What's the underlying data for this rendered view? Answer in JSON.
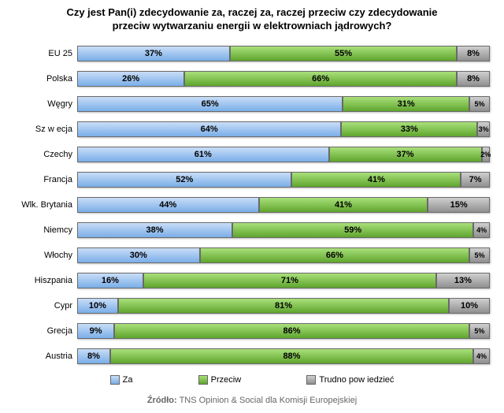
{
  "chart": {
    "type": "stacked-bar-horizontal",
    "title_line1": "Czy jest Pan(i) zdecydowanie za, raczej za, raczej przeciw czy zdecydowanie",
    "title_line2": "przeciw wytwarzaniu energii w elektrowniach jądrowych?",
    "title_fontsize": 13,
    "label_fontsize": 11,
    "value_fontsize": 11,
    "legend_fontsize": 11,
    "colors": {
      "za": "#9cc2f0",
      "przeciw": "#7bc043",
      "trudno": "#a8a8a8",
      "outline": "#6a6a6a",
      "text": "#000000",
      "source_text": "#666666"
    },
    "gradients": {
      "za": {
        "from": "#c9ddf7",
        "to": "#7aaee8"
      },
      "przeciw": {
        "from": "#a9e07a",
        "to": "#5fa52e"
      },
      "trudno": {
        "from": "#cfcfcf",
        "to": "#8f8f8f"
      }
    },
    "legend": [
      {
        "key": "za",
        "label": "Za"
      },
      {
        "key": "przeciw",
        "label": "Przeciw"
      },
      {
        "key": "trudno",
        "label": "Trudno pow iedzieć"
      }
    ],
    "categories": [
      {
        "name": "EU 25",
        "za": 37,
        "przeciw": 55,
        "trudno": 8
      },
      {
        "name": "Polska",
        "za": 26,
        "przeciw": 66,
        "trudno": 8
      },
      {
        "name": "Węgry",
        "za": 65,
        "przeciw": 31,
        "trudno": 5
      },
      {
        "name": "Sz w ecja",
        "za": 64,
        "przeciw": 33,
        "trudno": 3
      },
      {
        "name": "Czechy",
        "za": 61,
        "przeciw": 37,
        "trudno": 2
      },
      {
        "name": "Francja",
        "za": 52,
        "przeciw": 41,
        "trudno": 7
      },
      {
        "name": "Wlk. Brytania",
        "za": 44,
        "przeciw": 41,
        "trudno": 15
      },
      {
        "name": "Niemcy",
        "za": 38,
        "przeciw": 59,
        "trudno": 4
      },
      {
        "name": "Włochy",
        "za": 30,
        "przeciw": 66,
        "trudno": 5
      },
      {
        "name": "Hiszpania",
        "za": 16,
        "przeciw": 71,
        "trudno": 13
      },
      {
        "name": "Cypr",
        "za": 10,
        "przeciw": 81,
        "trudno": 10
      },
      {
        "name": "Grecja",
        "za": 9,
        "przeciw": 86,
        "trudno": 5
      },
      {
        "name": "Austria",
        "za": 8,
        "przeciw": 88,
        "trudno": 4
      }
    ],
    "source_label": "Źródło:",
    "source_value": "TNS Opinion & Social dla Komisji Europejskiej"
  }
}
